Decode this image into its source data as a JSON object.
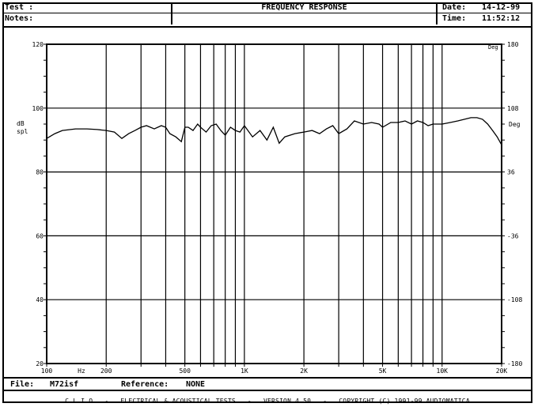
{
  "header": {
    "test_label": "Test :",
    "notes_label": "Notes:",
    "title": "FREQUENCY RESPONSE",
    "date_label": "Date:",
    "date_value": "14-12-99",
    "time_label": "Time:",
    "time_value": "11:52:12"
  },
  "footer": {
    "file_label": "File:",
    "file_value": "M72isf",
    "reference_label": "Reference:",
    "reference_value": "NONE",
    "credits": "C L I O   -   ELECTRICAL & ACOUSTICAL TESTS   -   VERSION 4.50   -   COPYRIGHT (C) 1991-99 AUDIOMATICA"
  },
  "chart_data": {
    "type": "line",
    "title": "FREQUENCY RESPONSE",
    "x_scale": "log",
    "xlim": [
      100,
      20000
    ],
    "ylim": [
      20,
      120
    ],
    "y_unit_label": [
      "dB",
      "spl"
    ],
    "right_axis_unit": "Deg",
    "right_axis_top_label": "Deg",
    "x_tick_labels": [
      {
        "value": 100,
        "label": "100"
      },
      {
        "value": 150,
        "label": "Hz"
      },
      {
        "value": 200,
        "label": "200"
      },
      {
        "value": 500,
        "label": "500"
      },
      {
        "value": 1000,
        "label": "1K"
      },
      {
        "value": 2000,
        "label": "2K"
      },
      {
        "value": 5000,
        "label": "5K"
      },
      {
        "value": 10000,
        "label": "10K"
      },
      {
        "value": 20000,
        "label": "20K"
      }
    ],
    "x_gridlines": [
      100,
      200,
      300,
      400,
      500,
      600,
      700,
      800,
      900,
      1000,
      2000,
      3000,
      4000,
      5000,
      6000,
      7000,
      8000,
      9000,
      10000,
      20000
    ],
    "y_ticks_left": [
      {
        "value": 120,
        "label": "120"
      },
      {
        "value": 100,
        "label": "100"
      },
      {
        "value": 80,
        "label": "80"
      },
      {
        "value": 60,
        "label": "60"
      },
      {
        "value": 40,
        "label": "40"
      },
      {
        "value": 20,
        "label": "20"
      }
    ],
    "y_ticks_right": [
      {
        "value": 120,
        "label": "180"
      },
      {
        "value": 100,
        "label": "108"
      },
      {
        "value": 80,
        "label": "36"
      },
      {
        "value": 60,
        "label": "-36"
      },
      {
        "value": 40,
        "label": "-108"
      },
      {
        "value": 20,
        "label": "-180"
      }
    ],
    "grid": true,
    "series": [
      {
        "x": [
          100,
          110,
          120,
          140,
          160,
          180,
          200,
          220,
          240,
          260,
          280,
          300,
          320,
          350,
          380,
          400,
          420,
          450,
          480,
          500,
          520,
          550,
          580,
          600,
          640,
          680,
          720,
          760,
          800,
          850,
          900,
          950,
          1000,
          1100,
          1200,
          1300,
          1400,
          1500,
          1600,
          1800,
          2000,
          2200,
          2400,
          2600,
          2800,
          3000,
          3300,
          3600,
          4000,
          4400,
          4800,
          5000,
          5500,
          6000,
          6500,
          7000,
          7500,
          8000,
          8500,
          9000,
          10000,
          11000,
          12000,
          13000,
          14000,
          15000,
          16000,
          17000,
          18000,
          19000,
          20000
        ],
        "y": [
          90.5,
          92.0,
          93.0,
          93.5,
          93.5,
          93.3,
          93.0,
          92.5,
          90.5,
          92.0,
          93.0,
          94.0,
          94.5,
          93.5,
          94.5,
          94.0,
          92.0,
          91.0,
          89.5,
          94.0,
          94.0,
          93.0,
          95.0,
          94.0,
          92.5,
          94.5,
          95.0,
          93.0,
          91.5,
          94.0,
          93.0,
          92.5,
          94.5,
          91.0,
          93.0,
          90.0,
          94.0,
          89.0,
          91.0,
          92.0,
          92.5,
          93.0,
          92.0,
          93.5,
          94.5,
          92.0,
          93.5,
          96.0,
          95.0,
          95.5,
          95.0,
          94.0,
          95.5,
          95.5,
          96.0,
          95.0,
          96.0,
          95.5,
          94.5,
          95.0,
          95.0,
          95.5,
          96.0,
          96.5,
          97.0,
          97.0,
          96.5,
          95.0,
          93.0,
          91.0,
          88.5
        ]
      }
    ]
  }
}
